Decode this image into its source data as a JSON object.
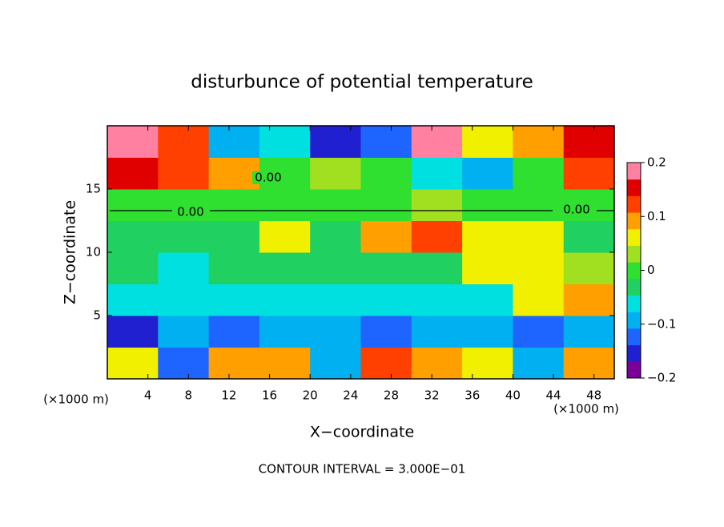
{
  "chart_data": {
    "type": "heatmap",
    "title": "disturbunce of potential temperature",
    "x_label": "X−coordinate",
    "y_label": "Z−coordinate",
    "x_unit_left": "(×1000 m)",
    "x_unit_right": "(×1000 m)",
    "footer": "CONTOUR INTERVAL = 3.000E−01",
    "contour_labels": [
      "0.00",
      "0.00",
      "0.00"
    ],
    "xlim": [
      0,
      50
    ],
    "ylim": [
      0,
      20
    ],
    "xticks": [
      4,
      8,
      12,
      16,
      20,
      24,
      28,
      32,
      36,
      40,
      44,
      48
    ],
    "yticks": [
      5,
      10,
      15
    ],
    "x": [
      2.5,
      7.5,
      12.5,
      17.5,
      22.5,
      27.5,
      32.5,
      37.5,
      42.5,
      47.5
    ],
    "z": [
      1.25,
      3.75,
      6.25,
      8.75,
      11.25,
      13.75,
      16.25,
      18.75
    ],
    "values": [
      [
        0.05,
        -0.12,
        0.08,
        0.1,
        -0.1,
        0.12,
        0.1,
        0.05,
        -0.1,
        0.08
      ],
      [
        -0.15,
        -0.1,
        -0.12,
        -0.08,
        -0.1,
        -0.12,
        -0.1,
        -0.08,
        -0.12,
        -0.1
      ],
      [
        -0.05,
        -0.07,
        -0.06,
        -0.05,
        -0.06,
        -0.05,
        -0.06,
        -0.05,
        0.05,
        0.08
      ],
      [
        -0.04,
        -0.05,
        -0.04,
        -0.03,
        -0.04,
        -0.03,
        -0.04,
        0.05,
        0.06,
        0.02
      ],
      [
        -0.03,
        -0.03,
        -0.02,
        0.05,
        -0.02,
        0.08,
        0.12,
        0.05,
        0.06,
        -0.02
      ],
      [
        0.0,
        0.01,
        0.0,
        0.0,
        0.0,
        0.01,
        0.02,
        0.0,
        0.0,
        0.0
      ],
      [
        0.15,
        0.12,
        0.1,
        0.0,
        0.02,
        0.0,
        -0.05,
        -0.08,
        0.0,
        0.12
      ],
      [
        0.2,
        0.12,
        -0.1,
        -0.05,
        -0.15,
        -0.12,
        0.2,
        0.05,
        0.08,
        0.15
      ]
    ],
    "zlim": [
      -0.2,
      0.2
    ],
    "colorbar_ticks": [
      0.2,
      0.1,
      0,
      {
        "value": -0.1,
        "label": "−0.1"
      },
      {
        "value": -0.2,
        "label": "−0.2"
      }
    ],
    "colormap": [
      "#7a0099",
      "#2020d0",
      "#1e64ff",
      "#00b0f0",
      "#00e0e0",
      "#20d060",
      "#30e030",
      "#a0e020",
      "#f0f000",
      "#ffa000",
      "#ff4000",
      "#e00000",
      "#ff80a0"
    ]
  }
}
